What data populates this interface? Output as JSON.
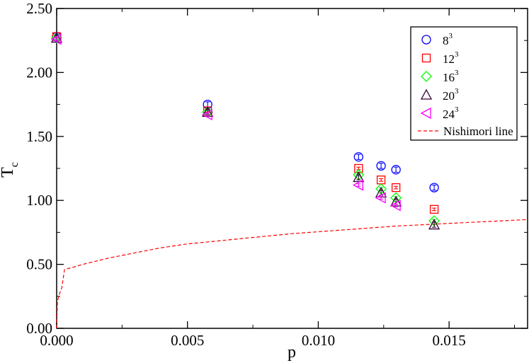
{
  "chart_data": {
    "type": "scatter",
    "xlabel": "p",
    "ylabel": "T",
    "ylabel_subscript": "c",
    "xlim": [
      0,
      0.018
    ],
    "ylim": [
      0,
      2.5
    ],
    "xticks": [
      0,
      0.005,
      0.01,
      0.015
    ],
    "xtick_labels": [
      "0.000",
      "0.005",
      "0.010",
      "0.015"
    ],
    "yticks": [
      0,
      0.5,
      1.0,
      1.5,
      2.0,
      2.5
    ],
    "ytick_labels": [
      "0.00",
      "0.50",
      "1.00",
      "1.50",
      "2.00",
      "2.50"
    ],
    "grid": false,
    "legend_position": "top-right",
    "series": [
      {
        "name": "8",
        "name_superscript": "3",
        "marker": "circle",
        "color": "#0000ff",
        "x": [
          0,
          0.00577,
          0.01154,
          0.0124,
          0.01297,
          0.01443
        ],
        "y": [
          2.28,
          1.75,
          1.34,
          1.27,
          1.24,
          1.1
        ],
        "err": [
          0.02,
          0.02,
          0.02,
          0.02,
          0.02,
          0.02
        ]
      },
      {
        "name": "12",
        "name_superscript": "3",
        "marker": "square",
        "color": "#ff0000",
        "x": [
          0,
          0.00577,
          0.01154,
          0.0124,
          0.01297,
          0.01443
        ],
        "y": [
          2.28,
          1.7,
          1.25,
          1.16,
          1.1,
          0.93
        ],
        "err": [
          0.01,
          0.01,
          0.01,
          0.01,
          0.01,
          0.01
        ]
      },
      {
        "name": "16",
        "name_superscript": "3",
        "marker": "diamond",
        "color": "#00ff00",
        "x": [
          0,
          0.00577,
          0.01154,
          0.0124,
          0.01297,
          0.01443
        ],
        "y": [
          2.27,
          1.69,
          1.2,
          1.09,
          1.02,
          0.84
        ],
        "err": [
          0.01,
          0.01,
          0.01,
          0.01,
          0.01,
          0.01
        ]
      },
      {
        "name": "20",
        "name_superscript": "3",
        "marker": "triangle-up",
        "color": "#330033",
        "x": [
          0,
          0.00577,
          0.01154,
          0.0124,
          0.01297,
          0.01443
        ],
        "y": [
          2.27,
          1.69,
          1.18,
          1.06,
          0.99,
          0.81
        ],
        "err": [
          0.02,
          0.02,
          0.02,
          0.02,
          0.02,
          0.02
        ]
      },
      {
        "name": "24",
        "name_superscript": "3",
        "marker": "triangle-left",
        "color": "#ff00ff",
        "x": [
          0,
          0.00577,
          0.01154,
          0.0124,
          0.01297
        ],
        "y": [
          2.26,
          1.67,
          1.12,
          1.02,
          0.96
        ],
        "err": [
          0.01,
          0.01,
          0.01,
          0.01,
          0.01
        ]
      },
      {
        "name": "Nishimori line",
        "marker": "none",
        "line": "dashed",
        "color": "#ff0000",
        "x": [
          0,
          3e-05,
          0.0001,
          0.0002,
          0.0003,
          0.0005,
          0.001,
          0.002,
          0.003,
          0.004,
          0.005,
          0.006,
          0.007,
          0.008,
          0.009,
          0.01,
          0.011,
          0.012,
          0.013,
          0.014,
          0.015,
          0.016,
          0.017,
          0.018
        ],
        "y": [
          0,
          0.21,
          0.265,
          0.32,
          0.46,
          0.47,
          0.5,
          0.55,
          0.59,
          0.63,
          0.66,
          0.68,
          0.7,
          0.72,
          0.74,
          0.755,
          0.77,
          0.785,
          0.8,
          0.81,
          0.82,
          0.83,
          0.84,
          0.85
        ]
      }
    ]
  }
}
